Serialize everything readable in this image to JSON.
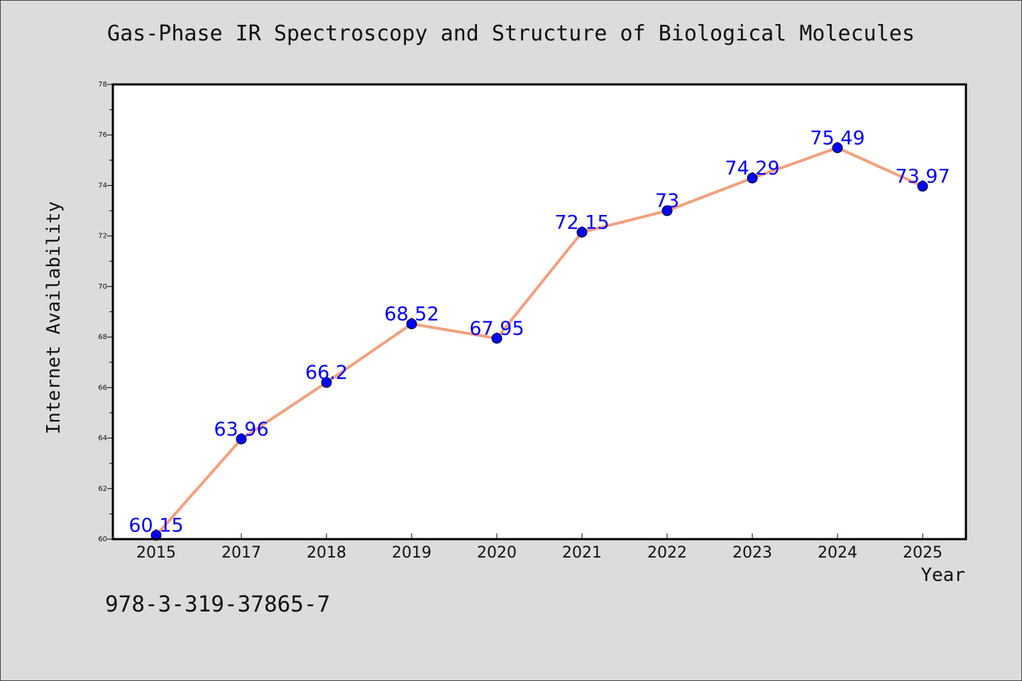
{
  "chart_data": {
    "type": "line",
    "title": "Gas-Phase IR Spectroscopy and Structure of Biological Molecules",
    "xlabel": "Year",
    "ylabel": "Internet Availability",
    "categories": [
      "2015",
      "2017",
      "2018",
      "2019",
      "2020",
      "2021",
      "2022",
      "2023",
      "2024",
      "2025"
    ],
    "series": [
      {
        "values": [
          60.15,
          63.96,
          66.2,
          68.52,
          67.95,
          72.15,
          73,
          74.29,
          75.49,
          73.97
        ]
      }
    ],
    "data_labels": [
      "60.15",
      "63.96",
      "66.2",
      "68.52",
      "67.95",
      "72.15",
      "73",
      "74.29",
      "75.49",
      "73.97"
    ],
    "ylim": [
      60,
      78
    ],
    "yticks": [
      60,
      62,
      64,
      66,
      68,
      70,
      72,
      74,
      76,
      78
    ],
    "ytick_labels": [
      "60",
      "62",
      "64",
      "66",
      "68",
      "70",
      "72",
      "74",
      "76",
      "78"
    ],
    "grid": false,
    "legend": "none",
    "colors": {
      "line": "#f4a07d",
      "marker": "#0000ff",
      "marker_edge": "#000000",
      "data_label": "#0000ff"
    }
  },
  "footer_text": "978-3-319-37865-7"
}
